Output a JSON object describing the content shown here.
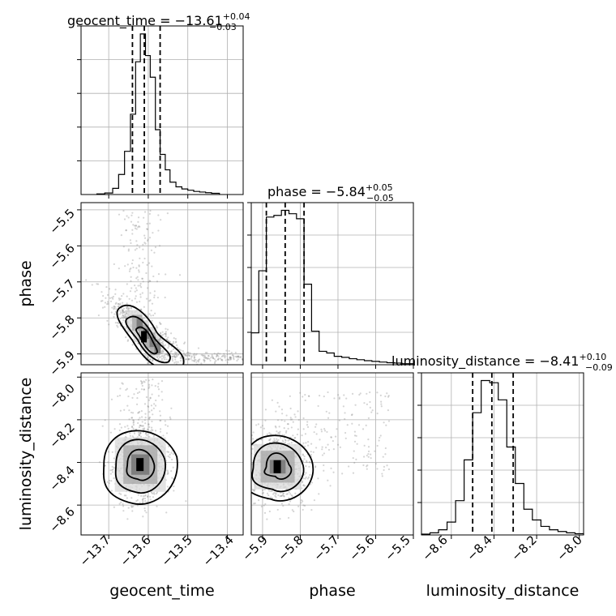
{
  "chart_data": [
    {
      "type": "histogram",
      "parameter": "geocent_time",
      "title": "geocent_time = −13.61",
      "title_sup": "+0.04",
      "title_sub": "−0.03",
      "median": -13.61,
      "quantiles": [
        -13.64,
        -13.61,
        -13.57
      ],
      "xlim": [
        -13.77,
        -13.36
      ],
      "bin_edges": [
        -13.73,
        -13.71,
        -13.69,
        -13.675,
        -13.66,
        -13.645,
        -13.632,
        -13.62,
        -13.607,
        -13.595,
        -13.582,
        -13.57,
        -13.557,
        -13.545,
        -13.53,
        -13.515,
        -13.5,
        -13.485,
        -13.47,
        -13.455,
        -13.44,
        -13.42
      ],
      "counts": [
        2,
        5,
        20,
        65,
        140,
        260,
        430,
        520,
        450,
        380,
        210,
        130,
        80,
        40,
        25,
        18,
        14,
        10,
        8,
        6,
        4
      ],
      "grid": true
    },
    {
      "type": "histogram",
      "parameter": "phase",
      "title": "phase = −5.84",
      "title_sup": "+0.05",
      "title_sub": "−0.05",
      "median": -5.84,
      "quantiles": [
        -5.89,
        -5.84,
        -5.79
      ],
      "xlim": [
        -5.93,
        -5.5
      ],
      "bin_edges": [
        -5.93,
        -5.91,
        -5.89,
        -5.87,
        -5.85,
        -5.83,
        -5.81,
        -5.79,
        -5.77,
        -5.75,
        -5.73,
        -5.71,
        -5.69,
        -5.67,
        -5.65,
        -5.63,
        -5.61,
        -5.59,
        -5.57,
        -5.55,
        -5.53,
        -5.5
      ],
      "counts": [
        95,
        280,
        440,
        445,
        460,
        450,
        435,
        240,
        100,
        40,
        35,
        25,
        22,
        18,
        15,
        12,
        10,
        8,
        6,
        5,
        3
      ],
      "grid": true
    },
    {
      "type": "histogram",
      "parameter": "luminosity_distance",
      "title": "luminosity_distance = −8.41",
      "title_sup": "+0.10",
      "title_sub": "−0.09",
      "median": -8.41,
      "quantiles": [
        -8.5,
        -8.41,
        -8.31
      ],
      "xlim": [
        -8.74,
        -7.98
      ],
      "bin_edges": [
        -8.74,
        -8.7,
        -8.66,
        -8.62,
        -8.58,
        -8.54,
        -8.5,
        -8.46,
        -8.42,
        -8.38,
        -8.34,
        -8.3,
        -8.26,
        -8.22,
        -8.18,
        -8.14,
        -8.1,
        -8.06,
        -8.02,
        -7.98
      ],
      "counts": [
        2,
        5,
        12,
        30,
        80,
        175,
        285,
        360,
        355,
        315,
        205,
        120,
        60,
        35,
        20,
        12,
        8,
        5,
        3
      ],
      "grid": true
    },
    {
      "type": "scatter-contour",
      "x_param": "geocent_time",
      "y_param": "phase",
      "xlim": [
        -13.77,
        -13.36
      ],
      "ylim": [
        -5.93,
        -5.48
      ],
      "density_peak": [
        -13.61,
        -5.85
      ],
      "grid": true
    },
    {
      "type": "scatter-contour",
      "x_param": "geocent_time",
      "y_param": "luminosity_distance",
      "xlim": [
        -13.77,
        -13.36
      ],
      "ylim": [
        -8.74,
        -7.98
      ],
      "density_peak": [
        -13.62,
        -8.41
      ],
      "grid": true
    },
    {
      "type": "scatter-contour",
      "x_param": "phase",
      "y_param": "luminosity_distance",
      "xlim": [
        -5.93,
        -5.5
      ],
      "ylim": [
        -8.74,
        -7.98
      ],
      "density_peak": [
        -5.86,
        -8.42
      ],
      "grid": true
    }
  ],
  "axes": {
    "xlabels": [
      "geocent_time",
      "phase",
      "luminosity_distance"
    ],
    "ylabels": [
      "phase",
      "luminosity_distance"
    ],
    "xticks": {
      "geocent_time": [
        "−13.7",
        "−13.6",
        "−13.5",
        "−13.4"
      ],
      "phase": [
        "−5.9",
        "−5.8",
        "−5.7",
        "−5.6",
        "−5.5"
      ],
      "luminosity_distance": [
        "−8.6",
        "−8.4",
        "−8.2",
        "−8.0"
      ]
    },
    "yticks": {
      "phase": [
        "−5.5",
        "−5.6",
        "−5.7",
        "−5.8",
        "−5.9"
      ],
      "luminosity_distance": [
        "−8.0",
        "−8.2",
        "−8.4",
        "−8.6"
      ]
    }
  },
  "colors": {
    "line": "#000000",
    "grid": "#b0b0b0",
    "scatter": "#888888"
  }
}
